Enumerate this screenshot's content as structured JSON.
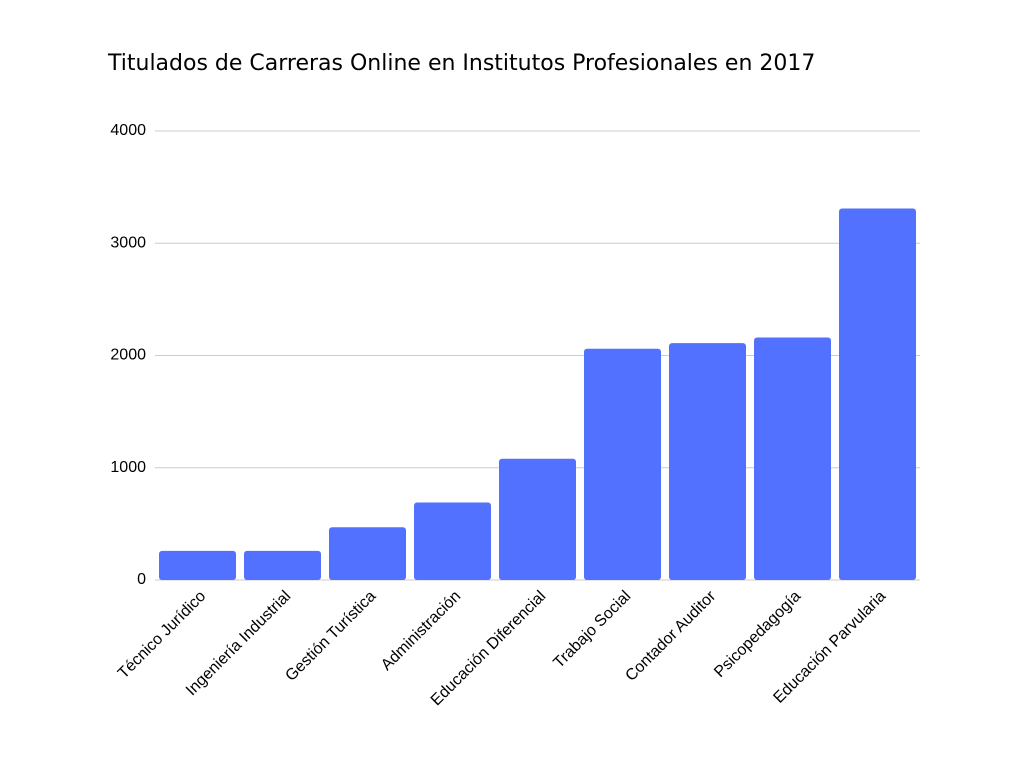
{
  "chart_data": {
    "type": "bar",
    "title": "Titulados de Carreras Online en Institutos Profesionales en 2017",
    "categories": [
      "Técnico Jurídico",
      "Ingeniería Industrial",
      "Gestión Turística",
      "Administración",
      "Educación Diferencial",
      "Trabajo Social",
      "Contador Auditor",
      "Psicopedagogía",
      "Educación Parvularia"
    ],
    "values": [
      260,
      260,
      470,
      690,
      1080,
      2060,
      2110,
      2160,
      3310
    ],
    "color": "#5271ff",
    "ylim": [
      0,
      4000
    ],
    "yticks": [
      0,
      1000,
      2000,
      3000,
      4000
    ],
    "grid": true
  }
}
